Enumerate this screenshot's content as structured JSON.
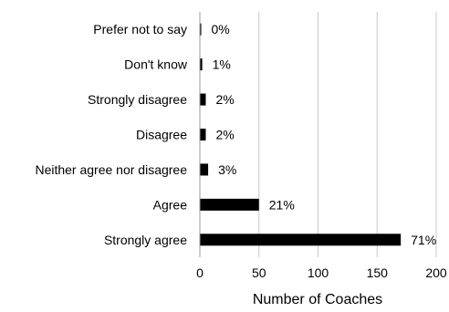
{
  "chart_data": {
    "type": "bar",
    "orientation": "horizontal",
    "categories": [
      "Prefer not to say",
      "Don't know",
      "Strongly disagree",
      "Disagree",
      "Neither agree nor disagree",
      "Agree",
      "Strongly agree"
    ],
    "values": [
      0,
      2,
      5,
      5,
      7,
      50,
      170
    ],
    "data_labels": [
      "0%",
      "1%",
      "2%",
      "2%",
      "3%",
      "21%",
      "71%"
    ],
    "xlabel": "Number of Coaches",
    "ylabel": "",
    "title": "",
    "xlim": [
      0,
      200
    ],
    "xticks": [
      0,
      50,
      100,
      150,
      200
    ],
    "xtick_labels": [
      "0",
      "50",
      "100",
      "150",
      "200"
    ],
    "grid": "vertical",
    "legend": "none",
    "bar_color": "#000000",
    "grid_color": "#c8c8c8"
  }
}
